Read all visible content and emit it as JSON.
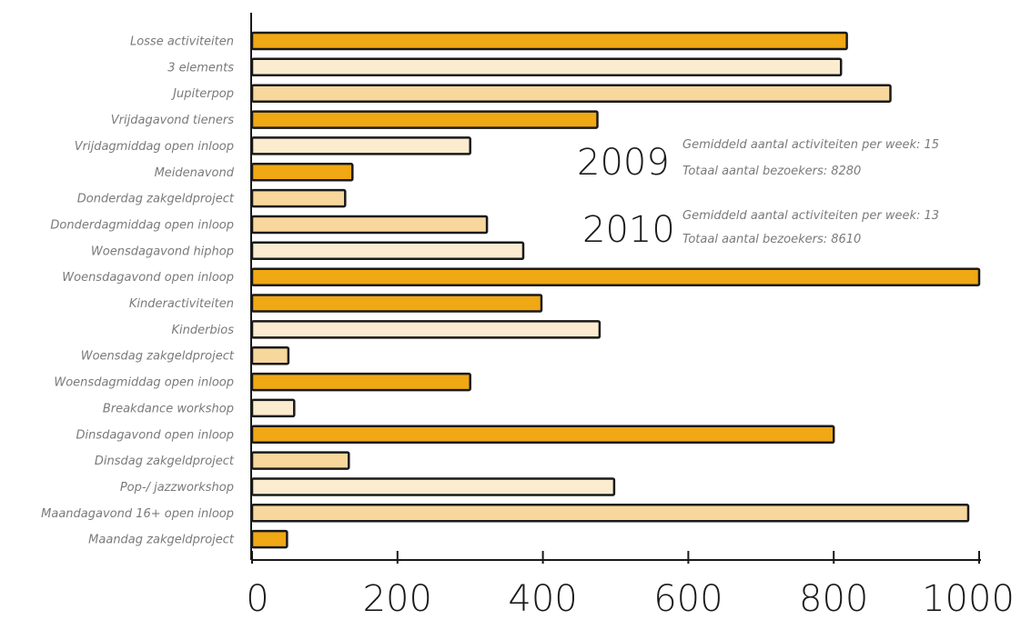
{
  "chart_data": {
    "type": "bar",
    "orientation": "horizontal",
    "categories": [
      "Losse activiteiten",
      "3 elements",
      "Jupiterpop",
      "Vrijdagavond tieners",
      "Vrijdagmiddag open inloop",
      "Meidenavond",
      "Donderdag zakgeldproject",
      "Donderdagmiddag open inloop",
      "Woensdagavond hiphop",
      "Woensdagavond open inloop",
      "Kinderactiviteiten",
      "Kinderbios",
      "Woensdag zakgeldproject",
      "Woensdagmiddag open inloop",
      "Breakdance workshop",
      "Dinsdagavond open inloop",
      "Dinsdag zakgeldproject",
      "Pop-/ jazzworkshop",
      "Maandagavond 16+ open inloop",
      "Maandag zakgeldproject"
    ],
    "values": [
      818,
      810,
      878,
      475,
      300,
      138,
      128,
      323,
      373,
      1000,
      398,
      478,
      50,
      300,
      58,
      800,
      133,
      498,
      985,
      48
    ],
    "xlim": [
      0,
      1000
    ],
    "xticks": [
      "0",
      "200",
      "400",
      "600",
      "800",
      "1000"
    ],
    "grid": false,
    "colors": {
      "dark": "#f0a814",
      "light": "#f7d79c",
      "pale": "#fbecd0",
      "outline": "#1a1a1a"
    },
    "bar_color_keys": [
      "dark",
      "pale",
      "light",
      "dark",
      "pale",
      "dark",
      "light",
      "light",
      "pale",
      "dark",
      "dark",
      "pale",
      "light",
      "dark",
      "pale",
      "dark",
      "light",
      "pale",
      "light",
      "dark"
    ],
    "annotations": [
      {
        "year": "2009",
        "line1": "Gemiddeld aantal activiteiten per week: 15",
        "line2": "Totaal aantal bezoekers: 8280"
      },
      {
        "year": "2010",
        "line1": "Gemiddeld aantal activiteiten per week: 13",
        "line2": "Totaal aantal bezoekers: 8610"
      }
    ]
  }
}
